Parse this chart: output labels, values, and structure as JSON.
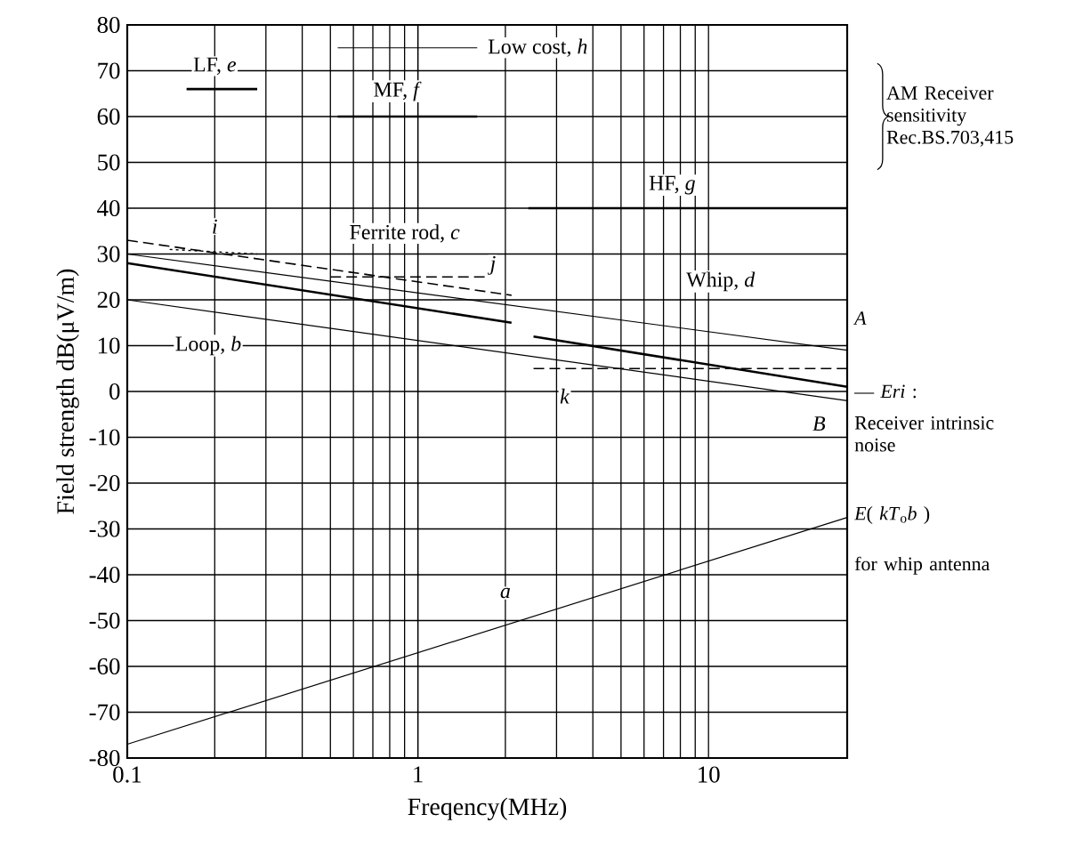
{
  "chart_data": {
    "type": "line",
    "xlabel": "Freqency(MHz)",
    "ylabel": "Field strength  dB(μV/m)",
    "log": "x",
    "xlim": [
      0.1,
      30
    ],
    "ylim": [
      -80,
      80
    ],
    "xticks": [
      0.1,
      1,
      10
    ],
    "yticks": [
      -80,
      -70,
      -60,
      -50,
      -40,
      -30,
      -20,
      -10,
      0,
      10,
      20,
      30,
      40,
      50,
      60,
      70,
      80
    ],
    "grid": true,
    "series": [
      {
        "color": "#000000",
        "line_style": "solid",
        "x": [
          0.1,
          30
        ],
        "values": [
          -77,
          -27.5
        ]
      },
      {
        "color": "#000000",
        "line_style": "solid",
        "x": [
          0.1,
          30
        ],
        "values": [
          30,
          9
        ]
      },
      {
        "color": "#000000",
        "line_style": "solid",
        "x": [
          0.1,
          30
        ],
        "values": [
          20,
          -2
        ]
      },
      {
        "color": "#000000",
        "line_style": "solid",
        "x": [
          0.1,
          2.1
        ],
        "values": [
          28,
          15
        ]
      },
      {
        "color": "#000000",
        "line_style": "dashed",
        "x": [
          0.1,
          2.1
        ],
        "values": [
          33,
          21
        ]
      },
      {
        "color": "#000000",
        "line_style": "dotted",
        "x": [
          0.14,
          0.28
        ],
        "values": [
          31,
          30
        ]
      },
      {
        "color": "#000000",
        "line_style": "dashed",
        "x": [
          0.5,
          1.7
        ],
        "values": [
          25,
          25
        ]
      },
      {
        "color": "#000000",
        "line_style": "solid",
        "x": [
          2.5,
          30
        ],
        "values": [
          12,
          1
        ]
      },
      {
        "color": "#000000",
        "line_style": "dashed",
        "x": [
          2.5,
          30
        ],
        "values": [
          5,
          5
        ]
      },
      {
        "color": "#000000",
        "line_style": "solid",
        "x": [
          0.16,
          0.28
        ],
        "values": [
          66,
          66
        ]
      },
      {
        "color": "#000000",
        "line_style": "solid",
        "x": [
          0.53,
          1.6
        ],
        "values": [
          60,
          60
        ]
      },
      {
        "color": "#000000",
        "line_style": "solid",
        "x": [
          0.53,
          1.6
        ],
        "values": [
          75,
          75
        ]
      },
      {
        "color": "#000000",
        "line_style": "solid",
        "x": [
          2.4,
          30
        ],
        "values": [
          40,
          40
        ]
      }
    ],
    "annotations": [
      "LF, *e*",
      "MF, *f*",
      "Low cost, *h*",
      "HF, *g*",
      "Ferrite rod, *c*",
      "*i*",
      "*j*",
      "Loop, *b*",
      "Whip, *d*",
      "*k*",
      "*a*",
      "*A*",
      "*B*",
      "— *Eri* :",
      "Receiver intrinsic noise",
      "*E*( *kT*$_{o}$*b* )",
      "for whip antenna",
      "AM Receiver sensitivity Rec.BS.703,415"
    ]
  }
}
